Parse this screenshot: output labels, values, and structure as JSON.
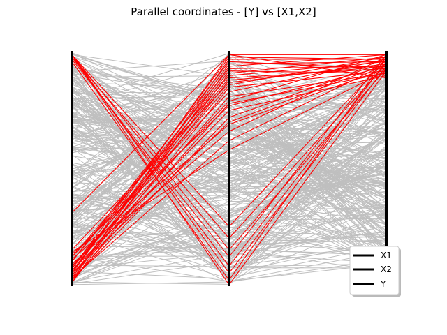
{
  "chart_data": {
    "type": "parallel-coordinates",
    "title": "Parallel coordinates - [Y] vs [X1,X2]",
    "axes": [
      "X1",
      "X2",
      "Y"
    ],
    "legend": {
      "placement": "lower-right",
      "entries": [
        "X1",
        "X2",
        "Y"
      ]
    },
    "colors": {
      "background_lines": "#bfbfbf",
      "highlight_lines": "#ff0000",
      "axis": "#000000"
    },
    "value_range": [
      0,
      1
    ],
    "background_series_count": 300,
    "highlighted_series": [
      {
        "X1": 0.31,
        "X2": 0.99,
        "Y": 0.99
      },
      {
        "X1": 0.02,
        "X2": 0.97,
        "Y": 0.97
      },
      {
        "X1": 0.05,
        "X2": 0.95,
        "Y": 0.96
      },
      {
        "X1": 0.1,
        "X2": 0.93,
        "Y": 0.94
      },
      {
        "X1": 0.03,
        "X2": 0.91,
        "Y": 0.98
      },
      {
        "X1": 0.07,
        "X2": 0.89,
        "Y": 0.93
      },
      {
        "X1": 0.15,
        "X2": 0.87,
        "Y": 0.95
      },
      {
        "X1": 0.01,
        "X2": 0.85,
        "Y": 0.92
      },
      {
        "X1": 0.12,
        "X2": 0.83,
        "Y": 0.97
      },
      {
        "X1": 0.04,
        "X2": 0.81,
        "Y": 0.91
      },
      {
        "X1": 0.08,
        "X2": 0.79,
        "Y": 0.99
      },
      {
        "X1": 0.13,
        "X2": 0.77,
        "Y": 0.94
      },
      {
        "X1": 0.06,
        "X2": 0.75,
        "Y": 0.9
      },
      {
        "X1": 0.02,
        "X2": 0.72,
        "Y": 0.96
      },
      {
        "X1": 0.11,
        "X2": 0.69,
        "Y": 0.93
      },
      {
        "X1": 0.09,
        "X2": 0.66,
        "Y": 0.98
      },
      {
        "X1": 0.03,
        "X2": 0.62,
        "Y": 0.95
      },
      {
        "X1": 0.14,
        "X2": 0.58,
        "Y": 0.92
      },
      {
        "X1": 0.05,
        "X2": 0.99,
        "Y": 0.89
      },
      {
        "X1": 0.07,
        "X2": 0.98,
        "Y": 0.97
      },
      {
        "X1": 0.1,
        "X2": 0.96,
        "Y": 0.93
      },
      {
        "X1": 0.01,
        "X2": 0.94,
        "Y": 0.99
      },
      {
        "X1": 0.06,
        "X2": 0.92,
        "Y": 0.91
      },
      {
        "X1": 0.12,
        "X2": 0.9,
        "Y": 0.96
      },
      {
        "X1": 0.04,
        "X2": 0.88,
        "Y": 0.94
      },
      {
        "X1": 0.08,
        "X2": 0.86,
        "Y": 0.98
      },
      {
        "X1": 0.99,
        "X2": 0.25,
        "Y": 0.97
      },
      {
        "X1": 0.98,
        "X2": 0.2,
        "Y": 0.95
      },
      {
        "X1": 0.99,
        "X2": 0.15,
        "Y": 0.93
      },
      {
        "X1": 0.97,
        "X2": 0.12,
        "Y": 0.99
      },
      {
        "X1": 0.98,
        "X2": 0.08,
        "Y": 0.96
      },
      {
        "X1": 0.99,
        "X2": 0.05,
        "Y": 0.94
      },
      {
        "X1": 0.96,
        "X2": 0.02,
        "Y": 0.98
      },
      {
        "X1": 0.99,
        "X2": 0.0,
        "Y": 0.92
      },
      {
        "X1": 0.02,
        "X2": 0.78,
        "Y": 0.91
      },
      {
        "X1": 0.05,
        "X2": 0.7,
        "Y": 0.95
      }
    ]
  }
}
